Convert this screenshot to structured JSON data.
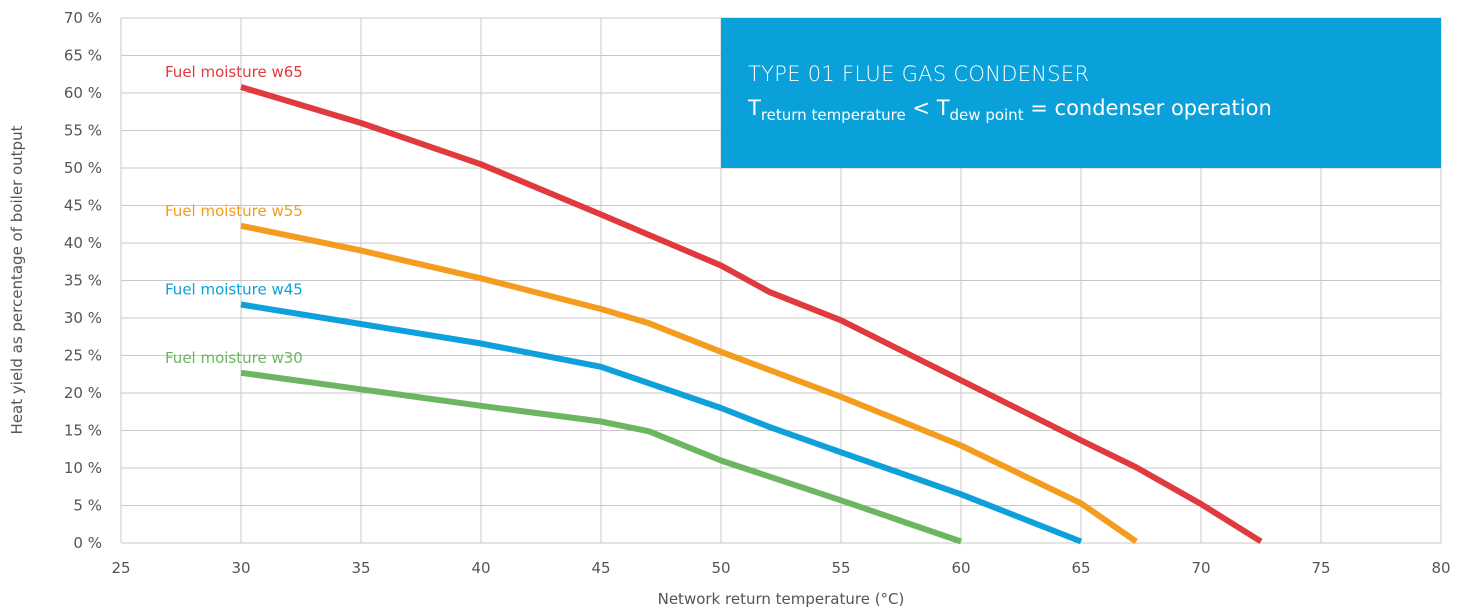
{
  "info_box": {
    "title": "TYPE 01 FLUE GAS CONDENSER",
    "formula": {
      "t1": "T",
      "sub1": "return temperature",
      "op1": " < ",
      "t2": "T",
      "sub2": "dew point",
      "rest": " = condenser operation"
    },
    "background": "#0aa0da"
  },
  "chart_data": {
    "type": "line",
    "title": "",
    "xlabel": "Network return temperature (°C)",
    "ylabel": "Heat yield as percentage of boiler output",
    "xlim": [
      25,
      80
    ],
    "ylim": [
      0,
      70
    ],
    "x_ticks": [
      25,
      30,
      35,
      40,
      45,
      50,
      55,
      60,
      65,
      70,
      75,
      80
    ],
    "y_ticks": [
      0,
      5,
      10,
      15,
      20,
      25,
      30,
      35,
      40,
      45,
      50,
      55,
      60,
      65,
      70
    ],
    "y_tick_labels": [
      "0 %",
      "5 %",
      "10 %",
      "15 %",
      "20 %",
      "25 %",
      "30 %",
      "35 %",
      "40 %",
      "45 %",
      "50 %",
      "55 %",
      "60 %",
      "65 %",
      "70 %"
    ],
    "grid": true,
    "series": [
      {
        "name": "Fuel moisture w65",
        "color": "#e03a3e",
        "points": [
          [
            30,
            60.8
          ],
          [
            35,
            56.0
          ],
          [
            40,
            50.5
          ],
          [
            45,
            43.8
          ],
          [
            50,
            37.0
          ],
          [
            52,
            33.5
          ],
          [
            55,
            29.7
          ],
          [
            60,
            21.7
          ],
          [
            65,
            13.7
          ],
          [
            67.3,
            10.1
          ],
          [
            70,
            5.2
          ],
          [
            72.5,
            0.2
          ]
        ]
      },
      {
        "name": "Fuel moisture w55",
        "color": "#f39c1e",
        "points": [
          [
            30,
            42.3
          ],
          [
            35,
            39.0
          ],
          [
            40,
            35.3
          ],
          [
            45,
            31.2
          ],
          [
            47,
            29.3
          ],
          [
            50,
            25.5
          ],
          [
            55,
            19.5
          ],
          [
            60,
            13.0
          ],
          [
            65,
            5.3
          ],
          [
            67.3,
            0.2
          ]
        ]
      },
      {
        "name": "Fuel moisture w45",
        "color": "#0ea0da",
        "points": [
          [
            30,
            31.8
          ],
          [
            35,
            29.2
          ],
          [
            40,
            26.6
          ],
          [
            45,
            23.5
          ],
          [
            50,
            18.0
          ],
          [
            52,
            15.5
          ],
          [
            55,
            12.1
          ],
          [
            60,
            6.5
          ],
          [
            65,
            0.2
          ]
        ]
      },
      {
        "name": "Fuel moisture w30",
        "color": "#6db661",
        "points": [
          [
            30,
            22.7
          ],
          [
            35,
            20.5
          ],
          [
            40,
            18.3
          ],
          [
            45,
            16.2
          ],
          [
            47,
            14.9
          ],
          [
            50,
            11.0
          ],
          [
            55,
            5.7
          ],
          [
            60,
            0.2
          ]
        ]
      }
    ]
  }
}
